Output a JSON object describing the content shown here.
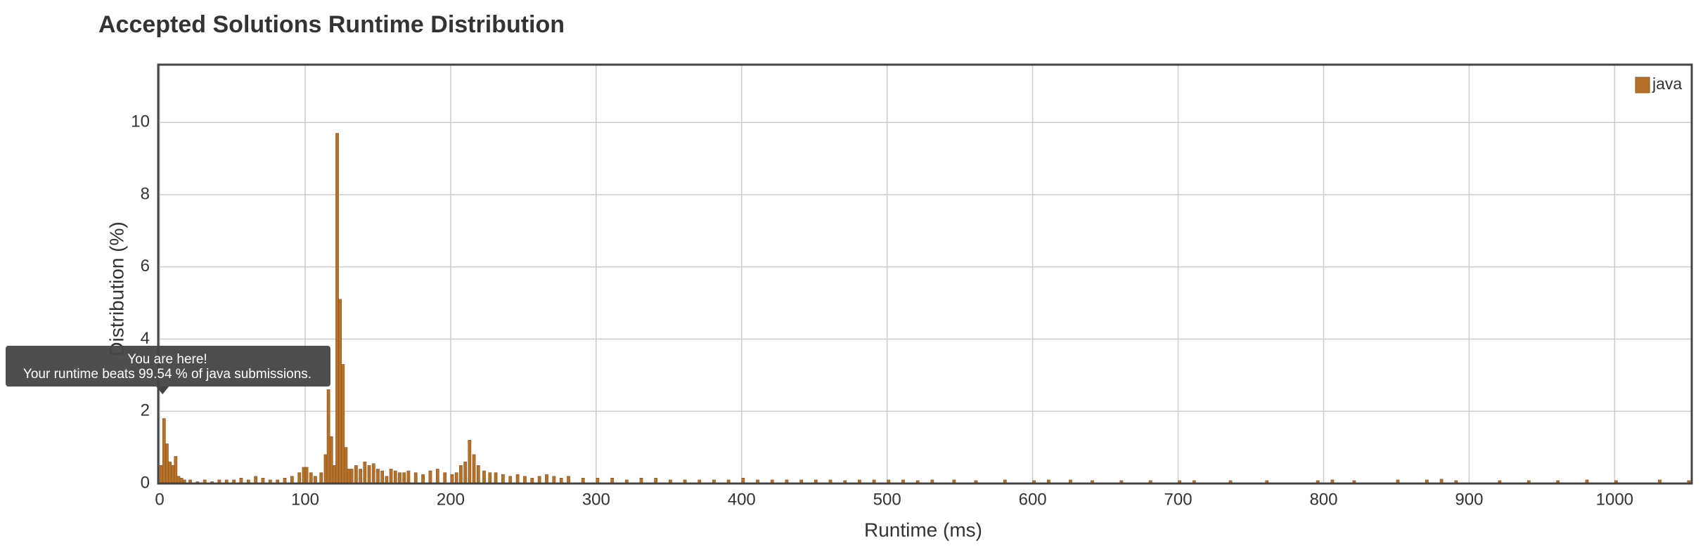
{
  "chart_data": {
    "type": "bar",
    "title": "Accepted Solutions Runtime Distribution",
    "x_label": "Runtime (ms)",
    "y_label": "Distribution (%)",
    "legend_position": "top-right",
    "grid": true,
    "annotation": {
      "title": "You are here!",
      "text": "Your runtime beats 99.54 % of java submissions.",
      "x": 2
    },
    "xlim": [
      -1,
      1053
    ],
    "xticks": [
      0,
      100,
      200,
      300,
      400,
      500,
      600,
      700,
      800,
      900,
      1000
    ],
    "ylim": [
      0,
      11.6
    ],
    "yticks": [
      0,
      2,
      4,
      6,
      8,
      10
    ],
    "x": [
      0,
      2,
      4,
      6,
      8,
      10,
      12,
      14,
      16,
      20,
      25,
      30,
      35,
      40,
      45,
      50,
      55,
      60,
      65,
      70,
      75,
      80,
      85,
      90,
      95,
      98,
      100,
      103,
      106,
      110,
      113,
      115,
      117,
      119,
      121,
      123,
      125,
      127,
      129,
      131,
      134,
      137,
      140,
      143,
      146,
      149,
      152,
      155,
      158,
      161,
      164,
      167,
      170,
      175,
      180,
      185,
      190,
      195,
      200,
      203,
      206,
      209,
      212,
      215,
      218,
      222,
      226,
      230,
      235,
      240,
      245,
      250,
      255,
      260,
      265,
      270,
      275,
      280,
      290,
      300,
      310,
      320,
      330,
      340,
      350,
      360,
      370,
      380,
      390,
      400,
      410,
      420,
      430,
      440,
      450,
      460,
      470,
      480,
      490,
      500,
      510,
      520,
      530,
      545,
      560,
      580,
      600,
      610,
      625,
      640,
      660,
      680,
      700,
      710,
      735,
      760,
      795,
      805,
      820,
      850,
      870,
      880,
      890,
      920,
      940,
      960,
      980,
      1000,
      1030,
      1050
    ],
    "series": [
      {
        "name": "java",
        "color": "#b5712a",
        "values": [
          0.5,
          1.8,
          1.1,
          0.6,
          0.5,
          0.75,
          0.2,
          0.15,
          0.1,
          0.1,
          0.05,
          0.1,
          0.05,
          0.1,
          0.1,
          0.1,
          0.15,
          0.1,
          0.2,
          0.15,
          0.1,
          0.1,
          0.15,
          0.2,
          0.3,
          0.45,
          0.45,
          0.3,
          0.2,
          0.3,
          0.8,
          2.6,
          1.3,
          0.5,
          9.7,
          5.1,
          3.3,
          1.0,
          0.4,
          0.4,
          0.5,
          0.4,
          0.6,
          0.5,
          0.55,
          0.4,
          0.35,
          0.2,
          0.4,
          0.35,
          0.3,
          0.3,
          0.35,
          0.3,
          0.25,
          0.35,
          0.4,
          0.3,
          0.25,
          0.3,
          0.5,
          0.6,
          1.2,
          0.8,
          0.5,
          0.35,
          0.3,
          0.3,
          0.25,
          0.2,
          0.25,
          0.2,
          0.15,
          0.2,
          0.25,
          0.2,
          0.15,
          0.2,
          0.15,
          0.15,
          0.15,
          0.1,
          0.15,
          0.15,
          0.1,
          0.1,
          0.1,
          0.1,
          0.1,
          0.15,
          0.1,
          0.1,
          0.1,
          0.1,
          0.1,
          0.1,
          0.08,
          0.1,
          0.1,
          0.1,
          0.1,
          0.08,
          0.1,
          0.1,
          0.08,
          0.1,
          0.08,
          0.1,
          0.1,
          0.08,
          0.08,
          0.08,
          0.08,
          0.08,
          0.08,
          0.08,
          0.08,
          0.1,
          0.08,
          0.1,
          0.1,
          0.12,
          0.08,
          0.08,
          0.08,
          0.08,
          0.1,
          0.08,
          0.1,
          0.08
        ]
      }
    ]
  }
}
